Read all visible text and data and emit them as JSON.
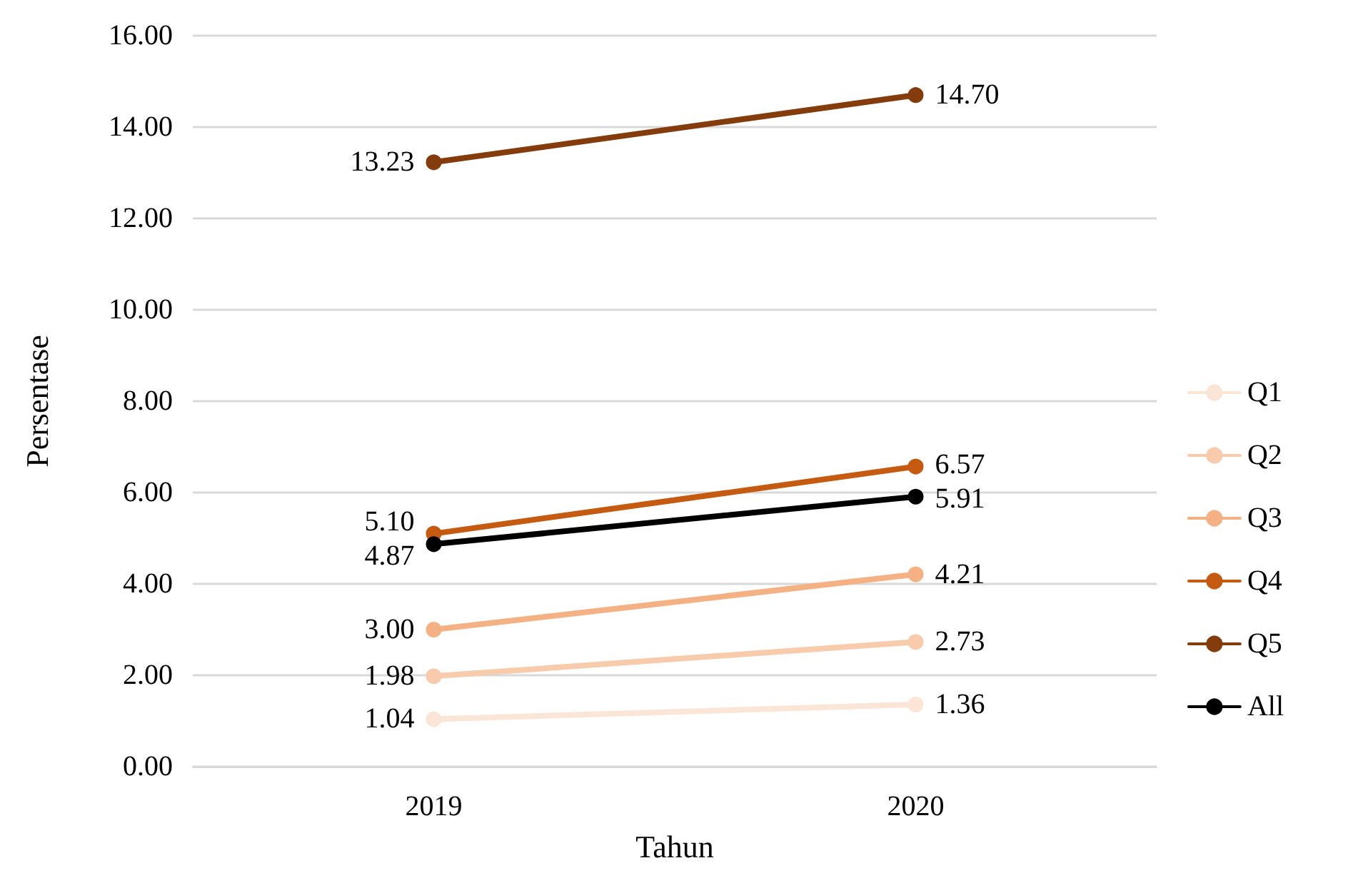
{
  "chart_data": {
    "type": "line",
    "xlabel": "Tahun",
    "ylabel": "Persentase",
    "categories": [
      "2019",
      "2020"
    ],
    "series": [
      {
        "name": "Q1",
        "color": "#fbe5d6",
        "values": [
          1.04,
          1.36
        ],
        "value_labels": [
          "1.04",
          "1.36"
        ]
      },
      {
        "name": "Q2",
        "color": "#f8cbad",
        "values": [
          1.98,
          2.73
        ],
        "value_labels": [
          "1.98",
          "2.73"
        ]
      },
      {
        "name": "Q3",
        "color": "#f4b183",
        "values": [
          3.0,
          4.21
        ],
        "value_labels": [
          "3.00",
          "4.21"
        ]
      },
      {
        "name": "Q4",
        "color": "#c55a11",
        "values": [
          5.1,
          6.57
        ],
        "value_labels": [
          "5.10",
          "6.57"
        ]
      },
      {
        "name": "Q5",
        "color": "#843c0c",
        "values": [
          13.23,
          14.7
        ],
        "value_labels": [
          "13.23",
          "14.70"
        ]
      },
      {
        "name": "All",
        "color": "#000000",
        "values": [
          4.87,
          5.91
        ],
        "value_labels": [
          "4.87",
          "5.91"
        ]
      }
    ],
    "ylim": [
      0,
      16
    ],
    "yticks": [
      {
        "value": 0,
        "label": "0.00"
      },
      {
        "value": 2,
        "label": "2.00"
      },
      {
        "value": 4,
        "label": "4.00"
      },
      {
        "value": 6,
        "label": "6.00"
      },
      {
        "value": 8,
        "label": "8.00"
      },
      {
        "value": 10,
        "label": "10.00"
      },
      {
        "value": 12,
        "label": "12.00"
      },
      {
        "value": 14,
        "label": "14.00"
      },
      {
        "value": 16,
        "label": "16.00"
      }
    ],
    "grid": "y",
    "legend": "right",
    "marker": "circle",
    "line_style": "solid"
  }
}
